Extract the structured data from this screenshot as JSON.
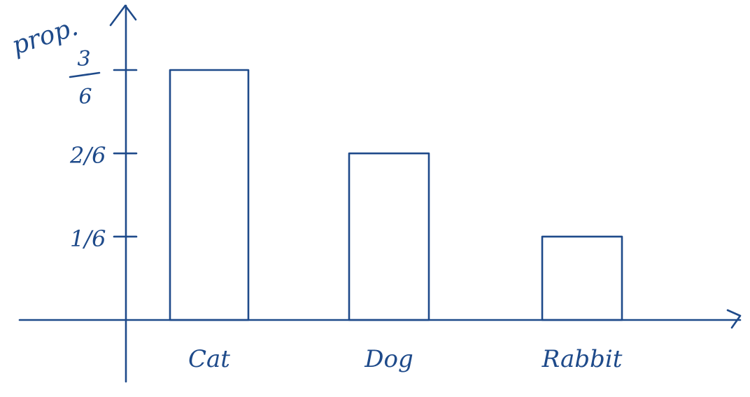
{
  "chart_data": {
    "type": "bar",
    "categories": [
      "Cat",
      "Dog",
      "Rabbit"
    ],
    "values": [
      0.5,
      0.3333,
      0.1667
    ],
    "ylabel": "prop.",
    "yticks": [
      {
        "value": 0.1667,
        "label": "1/6"
      },
      {
        "value": 0.3333,
        "label": "2/6"
      },
      {
        "value": 0.5,
        "label": "3/6"
      }
    ],
    "ylim": [
      0,
      0.62
    ],
    "grid": false,
    "color": "#1e4a8a"
  }
}
